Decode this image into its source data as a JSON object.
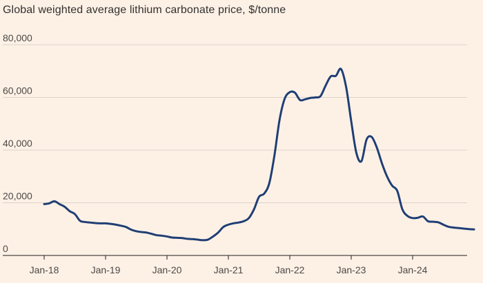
{
  "chart_data": {
    "type": "line",
    "title": "Global weighted average lithium carbonate price, $/tonne",
    "xlabel": "",
    "ylabel": "",
    "ylim": [
      0,
      80000
    ],
    "y_ticks": [
      0,
      20000,
      40000,
      60000,
      80000
    ],
    "y_tick_labels": [
      "0",
      "20,000",
      "40,000",
      "60,000",
      "80,000"
    ],
    "x_tick_labels": [
      "Jan-18",
      "Jan-19",
      "Jan-20",
      "Jan-21",
      "Jan-22",
      "Jan-23",
      "Jan-24"
    ],
    "x_tick_months": [
      0,
      12,
      24,
      36,
      48,
      60,
      72
    ],
    "x_range_months": [
      0,
      84
    ],
    "grid": true,
    "series": [
      {
        "name": "Lithium carbonate price",
        "color": "#1F3E74",
        "months": [
          0,
          1,
          2,
          3,
          4,
          5,
          6,
          7,
          8,
          9,
          10,
          11,
          12,
          13,
          14,
          15,
          16,
          17,
          18,
          19,
          20,
          21,
          22,
          23,
          24,
          25,
          26,
          27,
          28,
          29,
          30,
          31,
          32,
          33,
          34,
          35,
          36,
          37,
          38,
          39,
          40,
          41,
          42,
          43,
          44,
          45,
          46,
          47,
          48,
          49,
          50,
          51,
          52,
          53,
          54,
          55,
          56,
          57,
          58,
          59,
          60,
          61,
          62,
          63,
          64,
          65,
          66,
          67,
          68,
          69,
          70,
          71,
          72,
          73,
          74,
          75,
          76,
          77,
          78,
          79,
          80,
          81,
          82,
          83,
          84
        ],
        "values": [
          19500,
          19800,
          20600,
          19500,
          18500,
          16800,
          15700,
          13200,
          12700,
          12500,
          12300,
          12200,
          12200,
          12000,
          11700,
          11300,
          10800,
          9800,
          9200,
          8900,
          8700,
          8200,
          7700,
          7500,
          7200,
          6800,
          6700,
          6600,
          6300,
          6200,
          6000,
          5800,
          6000,
          7200,
          8700,
          10800,
          11700,
          12200,
          12500,
          13000,
          14200,
          17500,
          22300,
          23500,
          27500,
          38000,
          51500,
          59500,
          62000,
          61800,
          59000,
          59300,
          59800,
          60000,
          60500,
          64500,
          68000,
          68200,
          70800,
          64000,
          51000,
          39000,
          35800,
          44000,
          45000,
          41000,
          35000,
          30000,
          26500,
          24500,
          17500,
          15000,
          14200,
          14300,
          14800,
          13000,
          12800,
          12600,
          11700,
          10900,
          10600,
          10400,
          10200,
          10000,
          9900
        ]
      }
    ]
  }
}
